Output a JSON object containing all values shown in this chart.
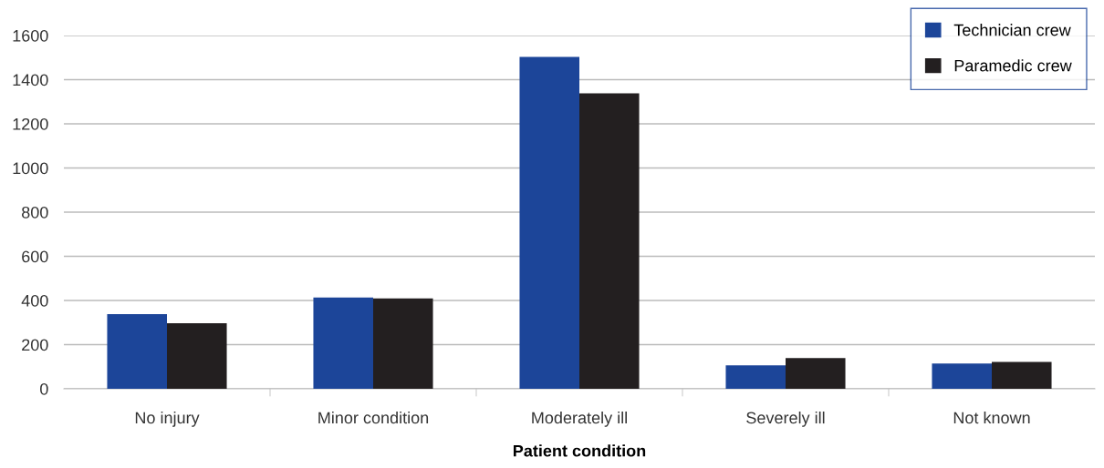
{
  "chart_data": {
    "type": "bar",
    "xlabel": "Patient condition",
    "categories": [
      "No injury",
      "Minor condition",
      "Moderately ill",
      "Severely ill",
      "Not known"
    ],
    "series": [
      {
        "name": "Technician crew",
        "color": "#1c4599",
        "values": [
          338,
          413,
          1503,
          106,
          114
        ]
      },
      {
        "name": "Paramedic crew",
        "color": "#231f20",
        "values": [
          297,
          409,
          1338,
          139,
          122
        ]
      }
    ],
    "ylim": [
      0,
      1600
    ],
    "yticks": [
      0,
      200,
      400,
      600,
      800,
      1000,
      1200,
      1400,
      1600
    ],
    "grid": "y",
    "legend": "top right"
  }
}
